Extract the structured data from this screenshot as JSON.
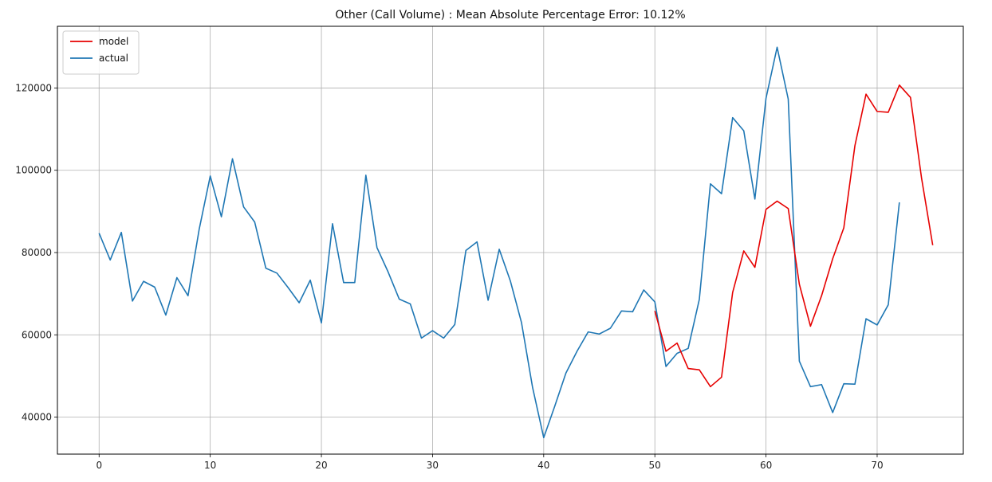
{
  "chart_data": {
    "type": "line",
    "title": "Other (Call Volume) : Mean Absolute Percentage Error: 10.12%",
    "xlabel": "",
    "ylabel": "",
    "xlim": [
      -3.75,
      77.75
    ],
    "ylim": [
      31000,
      135000
    ],
    "xticks": [
      0,
      10,
      20,
      30,
      40,
      50,
      60,
      70
    ],
    "yticks": [
      40000,
      60000,
      80000,
      100000,
      120000
    ],
    "grid": true,
    "legend_position": "top-left",
    "series": [
      {
        "name": "model",
        "color": "#e60000",
        "x": [
          50,
          51,
          52,
          53,
          54,
          55,
          56,
          57,
          58,
          59,
          60,
          61,
          62,
          63,
          64,
          65,
          66,
          67,
          68,
          69,
          70,
          71,
          72,
          73,
          74,
          75
        ],
        "y": [
          65800,
          56000,
          58000,
          51800,
          51500,
          47400,
          49700,
          70300,
          80400,
          76400,
          90500,
          92500,
          90700,
          72300,
          62100,
          69500,
          78500,
          86000,
          106000,
          118500,
          114300,
          114100,
          120700,
          117700,
          98000,
          81800
        ]
      },
      {
        "name": "actual",
        "color": "#1f77b4",
        "x": [
          0,
          1,
          2,
          3,
          4,
          5,
          6,
          7,
          8,
          9,
          10,
          11,
          12,
          13,
          14,
          15,
          16,
          17,
          18,
          19,
          20,
          21,
          22,
          23,
          24,
          25,
          26,
          27,
          28,
          29,
          30,
          31,
          32,
          33,
          34,
          35,
          36,
          37,
          38,
          39,
          40,
          41,
          42,
          43,
          44,
          45,
          46,
          47,
          48,
          49,
          50,
          51,
          52,
          53,
          54,
          55,
          56,
          57,
          58,
          59,
          60,
          61,
          62,
          63,
          64,
          65,
          66,
          67,
          68,
          69,
          70,
          71,
          72
        ],
        "y": [
          84700,
          78200,
          84900,
          68200,
          73000,
          71600,
          64800,
          73900,
          69500,
          85600,
          98600,
          88700,
          102800,
          91100,
          87400,
          76200,
          75000,
          71500,
          67800,
          73300,
          62900,
          87000,
          72700,
          72700,
          98800,
          81200,
          75300,
          68700,
          67500,
          59200,
          61000,
          59200,
          62500,
          80500,
          82600,
          68400,
          80800,
          73100,
          63000,
          47200,
          35000,
          42700,
          50700,
          56000,
          60700,
          60200,
          61600,
          65800,
          65600,
          70900,
          68000,
          52300,
          55500,
          56700,
          68600,
          96700,
          94300,
          112800,
          109600,
          93000,
          117500,
          129900,
          117300,
          53600,
          47400,
          47900,
          41100,
          48100,
          48000,
          63900,
          62400,
          67300,
          92200
        ]
      }
    ]
  }
}
